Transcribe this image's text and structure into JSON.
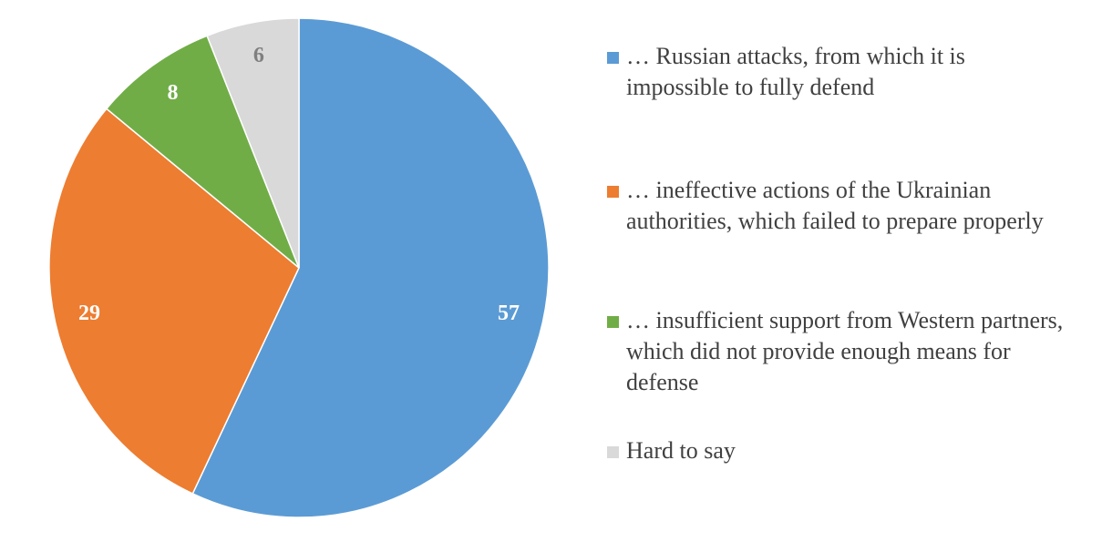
{
  "chart_data": {
    "type": "pie",
    "title": "",
    "slices": [
      {
        "label": "… Russian attacks, from which it is impossible to fully defend",
        "value": 57,
        "color": "#5B9BD5",
        "label_color": "#FFFFFF"
      },
      {
        "label": "… ineffective actions of the Ukrainian authorities, which failed to prepare properly",
        "value": 29,
        "color": "#ED7D31",
        "label_color": "#FFFFFF"
      },
      {
        "label": "… insufficient support from Western partners, which did not provide enough means for defense",
        "value": 8,
        "color": "#70AD47",
        "label_color": "#FFFFFF"
      },
      {
        "label": "Hard to say",
        "value": 6,
        "color": "#D9D9D9",
        "label_color": "#7F7F7F"
      }
    ],
    "start_angle": "12 o'clock",
    "direction": "clockwise",
    "legend_position": "right"
  }
}
